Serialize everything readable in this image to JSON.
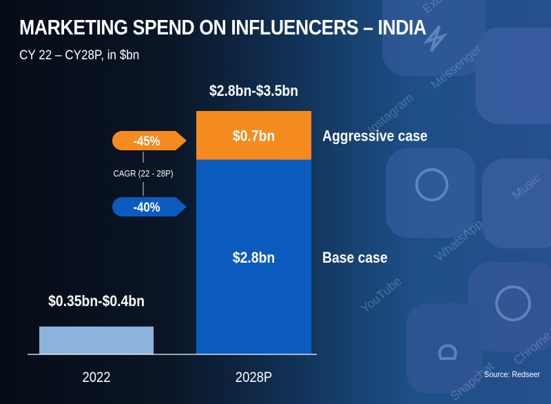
{
  "header": {
    "title": "MARKETING SPEND ON INFLUENCERS – INDIA",
    "subtitle": "CY 22 – CY28P, in $bn"
  },
  "source": "Source:  Redseer",
  "background": {
    "watermark_labels": [
      "Extra",
      "Messenger",
      "Instagram",
      "WhatsApp",
      "Music",
      "YouTube",
      "Snapchat",
      "Chrome"
    ]
  },
  "colors": {
    "base_bar": "#0c5bbf",
    "aggressive_bar": "#f58a1f",
    "bar_2022": "#8db3df",
    "text": "#ffffff",
    "cagr_base_pill": "#0c5bbf",
    "cagr_aggressive_pill": "#f58a1f"
  },
  "chart_data": {
    "type": "bar",
    "stacked": true,
    "categories": [
      "2022",
      "2028P"
    ],
    "series": [
      {
        "name": "Base case",
        "values": [
          0.4,
          2.8
        ]
      },
      {
        "name": "Aggressive case",
        "values": [
          0,
          0.7
        ]
      }
    ],
    "bar_labels": {
      "2022": "$0.35bn-$0.4bn",
      "2028P_total": "$2.8bn-$3.5bn",
      "2028P_base": "$2.8bn",
      "2028P_aggressive": "$0.7bn"
    },
    "ylim": [
      0,
      3.5
    ],
    "grid": false,
    "legend": "right"
  },
  "cagr": {
    "label": "CAGR (22 - 28P)",
    "aggressive": "-45%",
    "base": "-40%"
  }
}
